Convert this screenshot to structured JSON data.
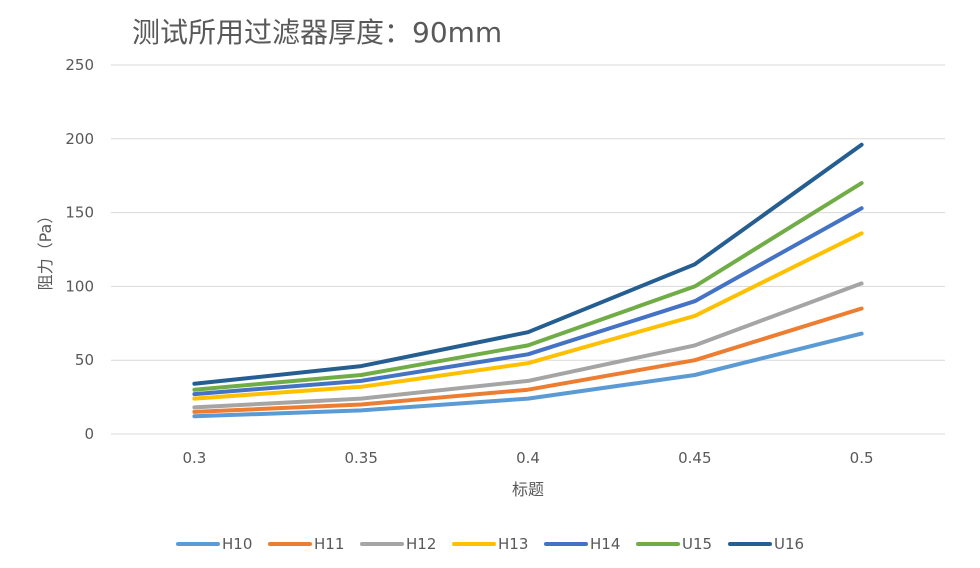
{
  "chart_data": {
    "type": "line",
    "title": "测试所用过滤器厚度：90mm",
    "xlabel": "标题",
    "ylabel": "阻力（Pa）",
    "categories": [
      "0.3",
      "0.35",
      "0.4",
      "0.45",
      "0.5"
    ],
    "ylim": [
      0,
      250
    ],
    "yticks": [
      0,
      50,
      100,
      150,
      200,
      250
    ],
    "grid": true,
    "legend_position": "bottom",
    "series": [
      {
        "name": "H10",
        "color": "#5B9BD5",
        "values": [
          12,
          16,
          24,
          40,
          68
        ]
      },
      {
        "name": "H11",
        "color": "#ED7D31",
        "values": [
          15,
          20,
          30,
          50,
          85
        ]
      },
      {
        "name": "H12",
        "color": "#A5A5A5",
        "values": [
          18,
          24,
          36,
          60,
          102
        ]
      },
      {
        "name": "H13",
        "color": "#FFC000",
        "values": [
          24,
          32,
          48,
          80,
          136
        ]
      },
      {
        "name": "H14",
        "color": "#4472C4",
        "values": [
          27,
          36,
          54,
          90,
          153
        ]
      },
      {
        "name": "U15",
        "color": "#70AD47",
        "values": [
          30,
          40,
          60,
          100,
          170
        ]
      },
      {
        "name": "U16",
        "color": "#255E91",
        "values": [
          34,
          46,
          69,
          115,
          196
        ]
      }
    ]
  }
}
